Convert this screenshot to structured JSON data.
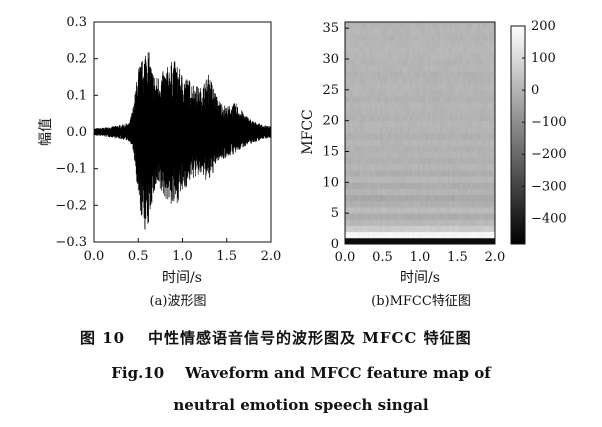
{
  "chart_data": [
    {
      "type": "line",
      "panel_caption": "(a)波形图",
      "xlabel": "时间/s",
      "ylabel": "幅值",
      "xlim": [
        0.0,
        2.0
      ],
      "ylim": [
        -0.3,
        0.3
      ],
      "xticks": [
        "0.0",
        "0.5",
        "1.0",
        "1.5",
        "2.0"
      ],
      "yticks": [
        "0.3",
        "0.2",
        "0.1",
        "0.0",
        "−0.1",
        "−0.2",
        "−0.3"
      ],
      "ytick_values": [
        0.3,
        0.2,
        0.1,
        0.0,
        -0.1,
        -0.2,
        -0.3
      ],
      "xtick_values": [
        0.0,
        0.5,
        1.0,
        1.5,
        2.0
      ],
      "series": [
        {
          "x": [
            0.0,
            0.1,
            0.2,
            0.3,
            0.4,
            0.45,
            0.5,
            0.55,
            0.6,
            0.65,
            0.7,
            0.8,
            0.9,
            1.0,
            1.1,
            1.2,
            1.3,
            1.4,
            1.5,
            1.6,
            1.7,
            1.8,
            1.9,
            2.0
          ],
          "upper": [
            0.01,
            0.012,
            0.015,
            0.02,
            0.025,
            0.08,
            0.18,
            0.2,
            0.25,
            0.18,
            0.15,
            0.17,
            0.2,
            0.16,
            0.14,
            0.12,
            0.16,
            0.09,
            0.07,
            0.08,
            0.05,
            0.03,
            0.02,
            0.015
          ],
          "lower": [
            -0.01,
            -0.012,
            -0.015,
            -0.02,
            -0.025,
            -0.06,
            -0.2,
            -0.25,
            -0.29,
            -0.2,
            -0.16,
            -0.18,
            -0.21,
            -0.17,
            -0.13,
            -0.12,
            -0.14,
            -0.08,
            -0.07,
            -0.06,
            -0.04,
            -0.03,
            -0.02,
            -0.015
          ]
        }
      ]
    },
    {
      "type": "heatmap",
      "panel_caption": "(b)MFCC特征图",
      "xlabel": "时间/s",
      "ylabel": "MFCC",
      "xlim": [
        0.0,
        2.0
      ],
      "ylim": [
        0,
        36
      ],
      "xticks": [
        "0.0",
        "0.5",
        "1.0",
        "1.5",
        "2.0"
      ],
      "xtick_values": [
        0.0,
        0.5,
        1.0,
        1.5,
        2.0
      ],
      "yticks": [
        "35",
        "30",
        "25",
        "20",
        "15",
        "10",
        "5",
        "0"
      ],
      "ytick_values": [
        35,
        30,
        25,
        20,
        15,
        10,
        5,
        0
      ],
      "colorbar": {
        "range": [
          -480,
          200
        ],
        "ticks": [
          "200",
          "100",
          "0",
          "−100",
          "−200",
          "−300",
          "−400"
        ],
        "tick_values": [
          200,
          100,
          0,
          -100,
          -200,
          -300,
          -400
        ],
        "colormap": "gray"
      },
      "row_values": [
        -450,
        170,
        60,
        10,
        -20,
        20,
        -10,
        -30,
        0,
        -20,
        10,
        -15,
        5,
        -10,
        0,
        -5,
        5,
        -10,
        0,
        5,
        -5,
        0,
        5,
        -5,
        0,
        5,
        0,
        -5,
        5,
        0,
        5,
        10,
        5,
        0,
        5,
        0
      ]
    }
  ],
  "caption": {
    "cn_label": "图 10",
    "cn_text": "中性情感语音信号的波形图及 MFCC 特征图",
    "en_line1": "Fig.10    Waveform and MFCC feature map of",
    "en_line2": "neutral emotion speech singal"
  }
}
